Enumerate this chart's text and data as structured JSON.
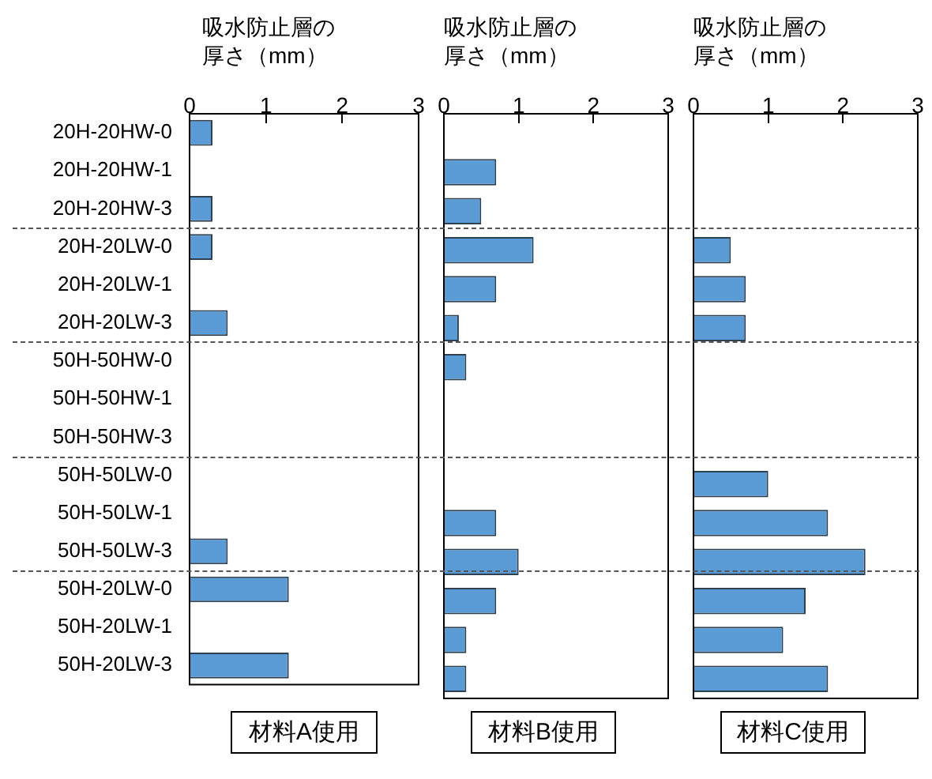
{
  "chart_data": [
    {
      "type": "bar",
      "orientation": "horizontal",
      "title": "材料A使用",
      "xlabel": "吸水防止層の厚さ（mm）",
      "categories": [
        "20H-20HW-0",
        "20H-20HW-1",
        "20H-20HW-3",
        "20H-20LW-0",
        "20H-20LW-1",
        "20H-20LW-3",
        "50H-50HW-0",
        "50H-50HW-1",
        "50H-50HW-3",
        "50H-50LW-0",
        "50H-50LW-1",
        "50H-50LW-3",
        "50H-20LW-0",
        "50H-20LW-1",
        "50H-20LW-3"
      ],
      "values": [
        0.3,
        null,
        0.3,
        0.3,
        null,
        0.5,
        null,
        null,
        null,
        null,
        null,
        0.5,
        1.3,
        null,
        1.3
      ],
      "color": "#5b9bd5",
      "xlim": [
        0,
        3
      ],
      "xticks": [
        0,
        1,
        2,
        3
      ],
      "grid": false,
      "legend": false
    },
    {
      "type": "bar",
      "orientation": "horizontal",
      "title": "材料B使用",
      "xlabel": "吸水防止層の厚さ（mm）",
      "values": [
        null,
        0.7,
        0.5,
        1.2,
        0.7,
        0.2,
        0.3,
        null,
        null,
        null,
        0.7,
        1.0,
        0.7,
        0.3,
        0.3
      ],
      "color": "#5b9bd5",
      "xlim": [
        0,
        3
      ],
      "xticks": [
        0,
        1,
        2,
        3
      ],
      "grid": false,
      "legend": false,
      "tick_labels": "x"
    },
    {
      "type": "bar",
      "orientation": "horizontal",
      "title": "材料C使用",
      "xlabel": "吸水防止層の厚さ（mm）",
      "values": [
        null,
        null,
        null,
        0.5,
        0.7,
        0.7,
        null,
        null,
        null,
        1.0,
        1.8,
        2.3,
        1.5,
        1.2,
        1.8
      ],
      "color": "#5b9bd5",
      "xlim": [
        0,
        3
      ],
      "xticks": [
        0,
        1,
        2,
        3
      ],
      "grid": false,
      "legend": false,
      "tick_labels": "x"
    }
  ]
}
